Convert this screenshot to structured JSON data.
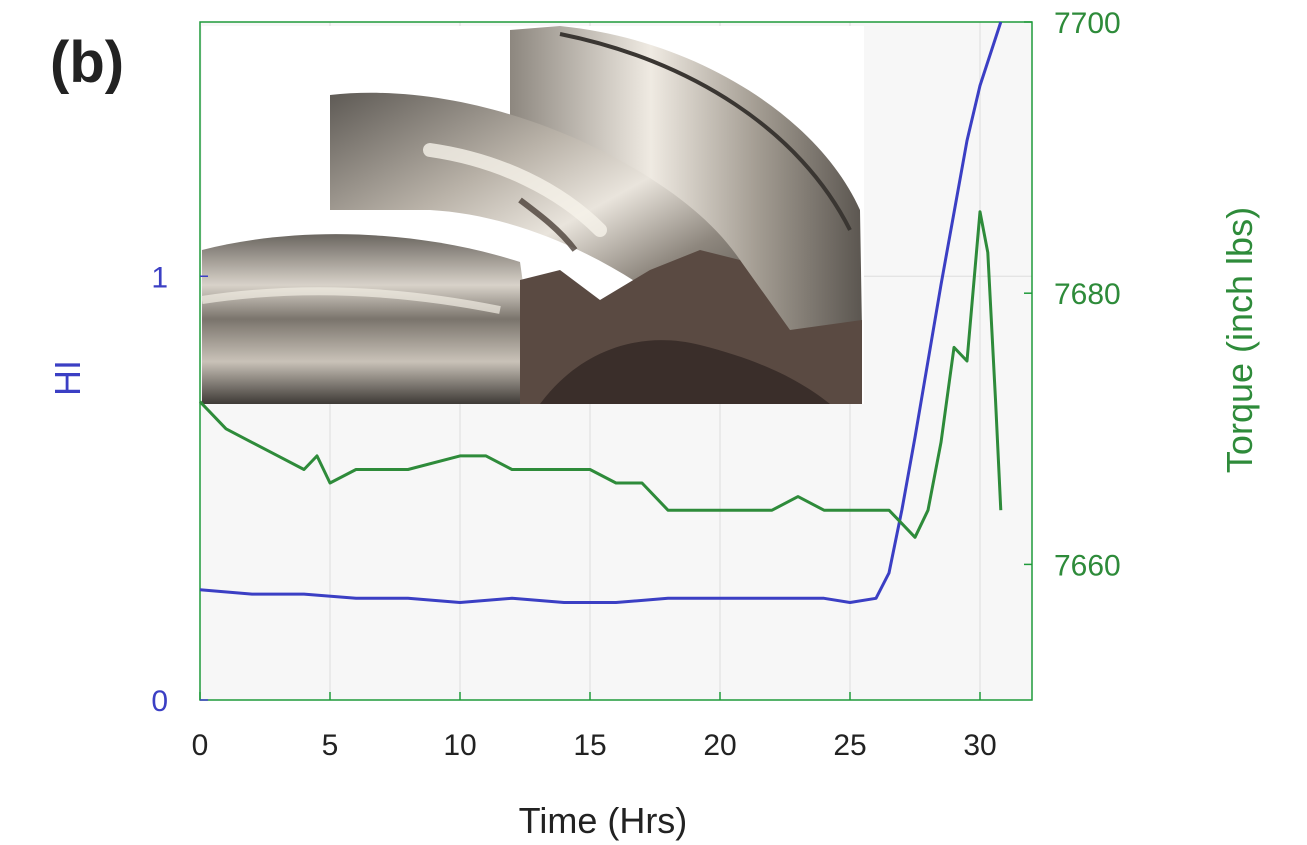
{
  "colors": {
    "hi": "#3b3fc4",
    "torque": "#2e8b3a",
    "frame": "#1f9a3a",
    "plot_bg": "#f7f7f7",
    "grid": "#dedede",
    "text": "#222222"
  },
  "chart_data": {
    "type": "line",
    "panel_label": "(b)",
    "xlabel": "Time (Hrs)",
    "ylabel_left": "HI",
    "ylabel_right": "Torque (inch lbs)",
    "xlim": [
      0,
      32
    ],
    "ylim_left": [
      0,
      1.6
    ],
    "ylim_right": [
      7650,
      7700
    ],
    "x_ticks": [
      0,
      5,
      10,
      15,
      20,
      25,
      30
    ],
    "left_ticks": [
      0,
      1
    ],
    "right_ticks": [
      7660,
      7680,
      7700
    ],
    "grid": true,
    "inset_image": "gear-tooth-damage-photo",
    "series": [
      {
        "name": "HI",
        "axis": "left",
        "color": "#3b3fc4",
        "x": [
          0,
          2,
          4,
          6,
          8,
          10,
          12,
          14,
          16,
          18,
          20,
          22,
          24,
          25,
          26,
          26.5,
          27,
          27.5,
          28,
          28.5,
          29,
          29.5,
          30,
          30.8
        ],
        "y": [
          0.26,
          0.25,
          0.25,
          0.24,
          0.24,
          0.23,
          0.24,
          0.23,
          0.23,
          0.24,
          0.24,
          0.24,
          0.24,
          0.23,
          0.24,
          0.3,
          0.45,
          0.62,
          0.8,
          0.98,
          1.15,
          1.32,
          1.45,
          1.6
        ]
      },
      {
        "name": "Torque",
        "axis": "right",
        "color": "#2e8b3a",
        "x": [
          0,
          1,
          2,
          3,
          4,
          4.5,
          5,
          6,
          7,
          8,
          10,
          11,
          12,
          13,
          14,
          15,
          16,
          17,
          18,
          19,
          20,
          21,
          22,
          23,
          24,
          25,
          26,
          26.5,
          27,
          27.5,
          28,
          28.5,
          29,
          29.5,
          30,
          30.3,
          30.6,
          30.8
        ],
        "y": [
          7672,
          7670,
          7669,
          7668,
          7667,
          7668,
          7666,
          7667,
          7667,
          7667,
          7668,
          7668,
          7667,
          7667,
          7667,
          7667,
          7666,
          7666,
          7664,
          7664,
          7664,
          7664,
          7664,
          7665,
          7664,
          7664,
          7664,
          7664,
          7663,
          7662,
          7664,
          7669,
          7676,
          7675,
          7686,
          7683,
          7672,
          7664
        ]
      }
    ]
  }
}
